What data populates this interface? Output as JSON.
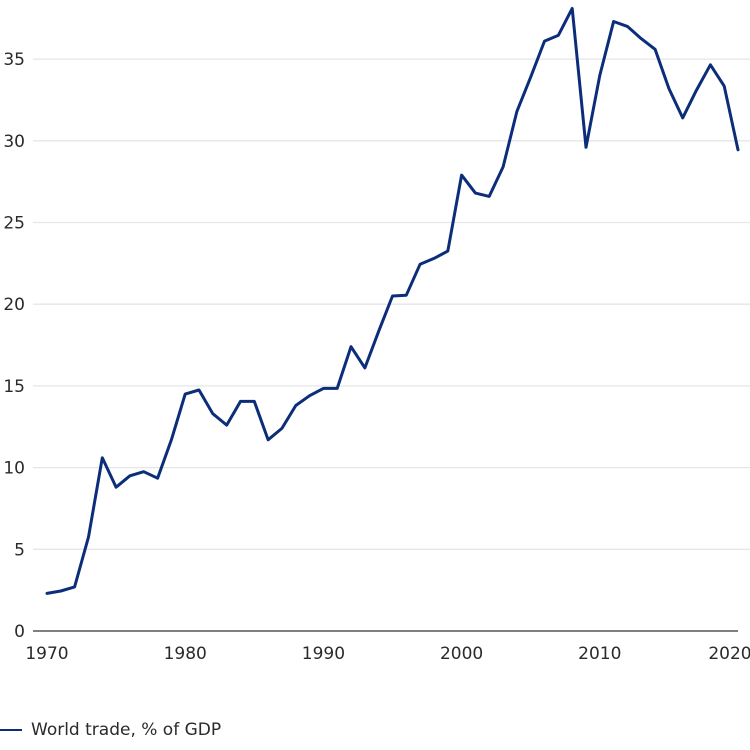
{
  "chart_data": {
    "type": "line",
    "title": "",
    "xlabel": "",
    "ylabel": "",
    "xlim": [
      1970,
      2020
    ],
    "ylim": [
      0,
      38.5
    ],
    "grid": true,
    "legend_position": "bottom-left",
    "x_ticks": [
      "1970",
      "1980",
      "1990",
      "2000",
      "2010",
      "2020"
    ],
    "y_ticks": [
      "0",
      "5",
      "10",
      "15",
      "20",
      "25",
      "30",
      "35"
    ],
    "x": [
      1970,
      1971,
      1972,
      1973,
      1974,
      1975,
      1976,
      1977,
      1978,
      1979,
      1980,
      1981,
      1982,
      1983,
      1984,
      1985,
      1986,
      1987,
      1988,
      1989,
      1990,
      1991,
      1992,
      1993,
      1994,
      1995,
      1996,
      1997,
      1998,
      1999,
      2000,
      2001,
      2002,
      2003,
      2004,
      2005,
      2006,
      2007,
      2008,
      2009,
      2010,
      2011,
      2012,
      2013,
      2014,
      2015,
      2016,
      2017,
      2018,
      2019,
      2020
    ],
    "series": [
      {
        "name": "World trade, % of GDP",
        "color": "#0b2d7a",
        "values": [
          2.3,
          2.45,
          2.7,
          5.75,
          10.6,
          8.8,
          9.5,
          9.75,
          9.35,
          11.7,
          14.5,
          14.75,
          13.3,
          12.6,
          14.05,
          14.05,
          11.7,
          12.4,
          13.8,
          14.4,
          14.85,
          14.85,
          17.4,
          16.1,
          18.35,
          20.5,
          20.55,
          22.45,
          22.8,
          23.25,
          27.9,
          26.8,
          26.6,
          28.4,
          31.8,
          33.9,
          36.1,
          36.45,
          38.1,
          29.6,
          34.0,
          37.3,
          37.0,
          36.25,
          35.6,
          33.2,
          31.4,
          33.1,
          34.65,
          33.35,
          29.45
        ]
      }
    ]
  },
  "legend": {
    "label": "World trade, % of GDP",
    "color": "#0b2d7a"
  },
  "colors": {
    "grid": "#e6e6e6",
    "axis": "#555555",
    "line": "#0b2d7a"
  }
}
